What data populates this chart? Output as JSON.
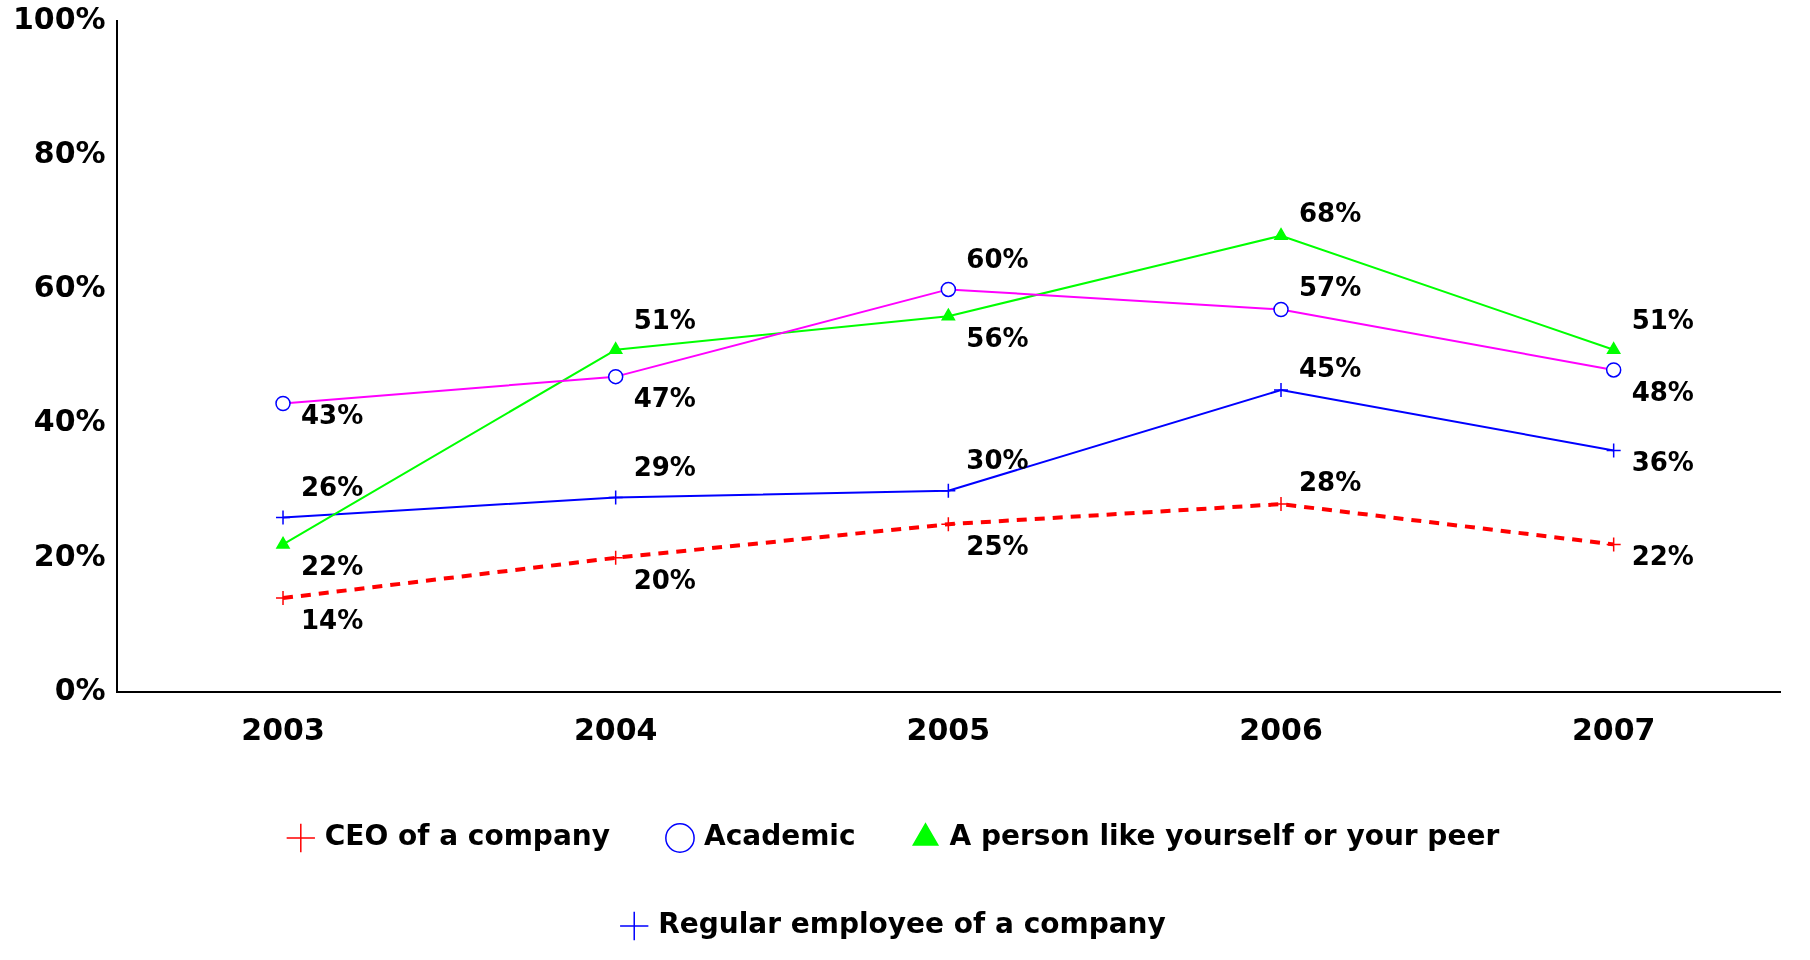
{
  "chart_data": {
    "type": "line",
    "categories": [
      "2003",
      "2004",
      "2005",
      "2006",
      "2007"
    ],
    "ylim": [
      0,
      100
    ],
    "yticks": [
      {
        "value": 0,
        "label": "0%"
      },
      {
        "value": 20,
        "label": "20%"
      },
      {
        "value": 40,
        "label": "40%"
      },
      {
        "value": 60,
        "label": "60%"
      },
      {
        "value": 80,
        "label": "80%"
      },
      {
        "value": 100,
        "label": "100%"
      }
    ],
    "grid": false,
    "legend": "bottom",
    "series": [
      {
        "name": "CEO of a company",
        "color": "#ff0000",
        "marker": "cross",
        "line_style": "dashed",
        "values": [
          14,
          20,
          25,
          28,
          22
        ],
        "value_labels": [
          "14%",
          "20%",
          "25%",
          "28%",
          "22%"
        ]
      },
      {
        "name": "Academic",
        "color": "#ff00ff",
        "marker": "circle",
        "line_style": "solid",
        "values": [
          43,
          47,
          60,
          57,
          48
        ],
        "value_labels": [
          "43%",
          "47%",
          "60%",
          "57%",
          "48%"
        ]
      },
      {
        "name": "A person like yourself or your peer",
        "color": "#00ff00",
        "marker": "triangle",
        "line_style": "solid",
        "values": [
          22,
          51,
          56,
          68,
          51
        ],
        "value_labels": [
          "22%",
          "51%",
          "56%",
          "68%",
          "51%"
        ]
      },
      {
        "name": "Regular employee of a company",
        "color": "#0000ff",
        "marker": "cross",
        "line_style": "solid",
        "values": [
          26,
          29,
          30,
          45,
          36
        ],
        "value_labels": [
          "26%",
          "29%",
          "30%",
          "45%",
          "36%"
        ]
      }
    ]
  }
}
